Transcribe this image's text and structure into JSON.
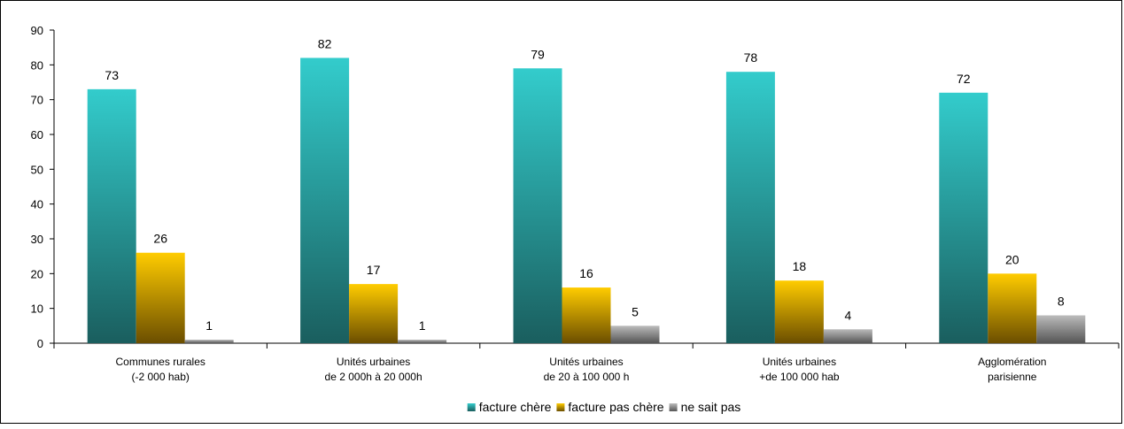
{
  "chart_data": {
    "type": "bar",
    "title": "",
    "xlabel": "",
    "ylabel": "",
    "ylim": [
      0,
      90
    ],
    "yticks": [
      0,
      10,
      20,
      30,
      40,
      50,
      60,
      70,
      80,
      90
    ],
    "grid": false,
    "legend_position": "bottom",
    "categories": [
      [
        "Communes rurales",
        "(-2 000 hab)"
      ],
      [
        "Unités urbaines",
        "de 2 000h à 20 000h"
      ],
      [
        "Unités urbaines",
        "de 20 à 100 000 h"
      ],
      [
        "Unités urbaines",
        "+de 100 000 hab"
      ],
      [
        "Agglomération",
        "parisienne"
      ]
    ],
    "series": [
      {
        "name": "facture chère",
        "values": [
          73,
          82,
          79,
          78,
          72
        ],
        "color": "#33CCCC",
        "color_dark": "#1A5E5E"
      },
      {
        "name": "facture pas chère",
        "values": [
          26,
          17,
          16,
          18,
          20
        ],
        "color": "#FFCC00",
        "color_dark": "#6B4E00"
      },
      {
        "name": "ne sait pas",
        "values": [
          1,
          1,
          5,
          4,
          8
        ],
        "color": "#BBBBBB",
        "color_dark": "#555555"
      }
    ]
  }
}
